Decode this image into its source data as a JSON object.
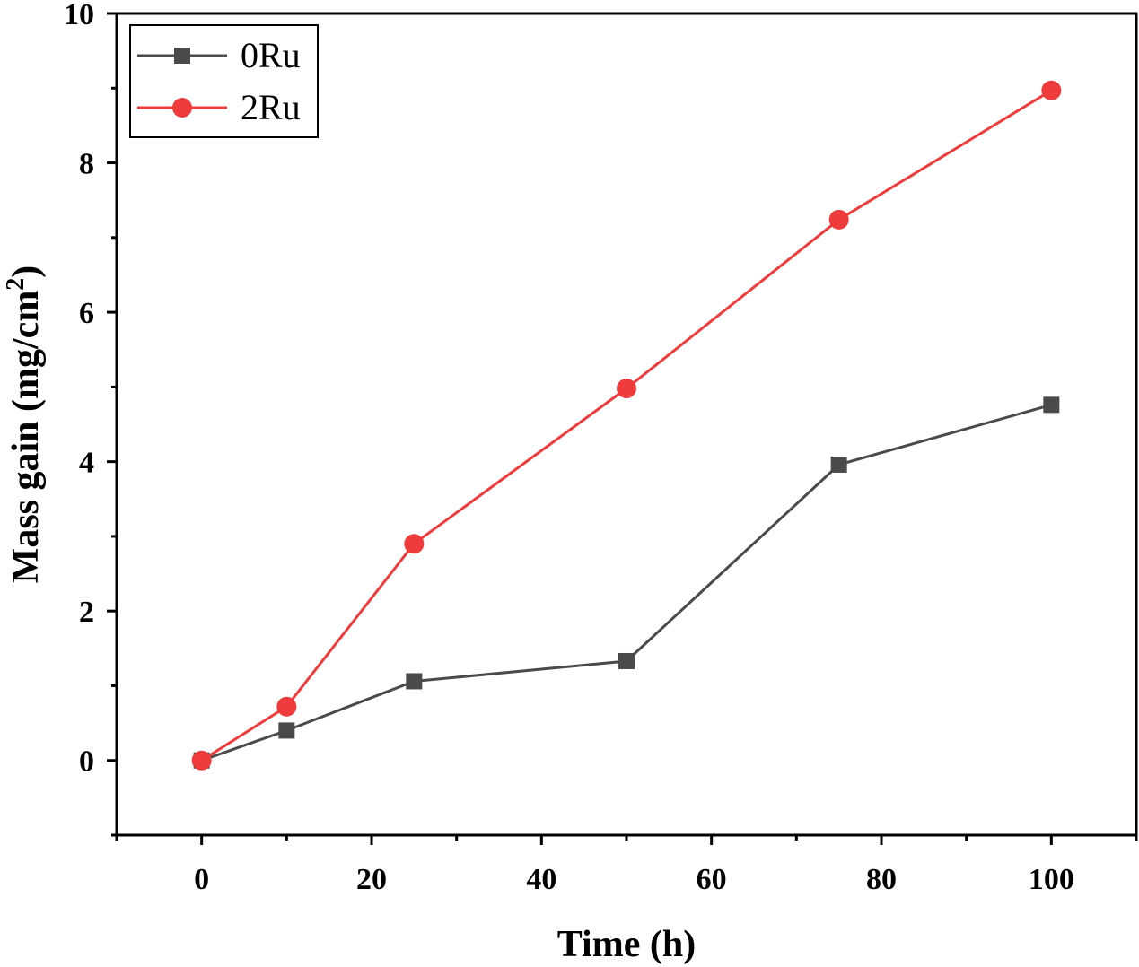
{
  "chart_data": {
    "type": "line",
    "xlabel": "Time (h)",
    "ylabel": {
      "main": "Mass gain (mg/cm",
      "sup": "2",
      "end": ")"
    },
    "xlim": [
      -10,
      110
    ],
    "ylim": [
      -1,
      10
    ],
    "x_ticks": [
      0,
      20,
      40,
      60,
      80,
      100
    ],
    "x_minor_ticks": [
      -10,
      10,
      30,
      50,
      70,
      90,
      110
    ],
    "y_ticks": [
      0,
      2,
      4,
      6,
      8,
      10
    ],
    "y_minor_ticks": [
      -1,
      1,
      3,
      5,
      7,
      9
    ],
    "grid": false,
    "legend_position": "top-left",
    "series": [
      {
        "name": "0Ru",
        "marker": "square",
        "color": "#4a4a4a",
        "x": [
          0,
          10,
          25,
          50,
          75,
          100
        ],
        "y": [
          0,
          0.4,
          1.06,
          1.33,
          3.96,
          4.76
        ]
      },
      {
        "name": "2Ru",
        "marker": "circle",
        "color": "#ef3b3b",
        "x": [
          0,
          10,
          25,
          50,
          75,
          100
        ],
        "y": [
          0,
          0.72,
          2.9,
          4.98,
          7.24,
          8.97
        ]
      }
    ]
  }
}
